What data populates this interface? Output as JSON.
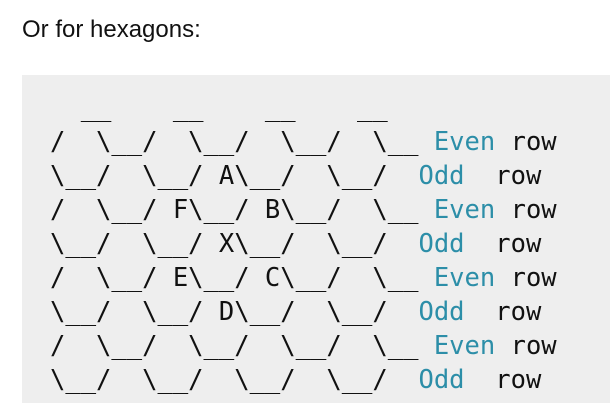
{
  "intro": {
    "text": "Or for hexagons:"
  },
  "code": {
    "lines": [
      {
        "art": "  __    __    __    __",
        "keyword": "",
        "rest": ""
      },
      {
        "art": "/  \\__/  \\__/  \\__/  \\__ ",
        "keyword": "Even",
        "rest": " row"
      },
      {
        "art": "\\__/  \\__/ A\\__/  \\__/  ",
        "keyword": "Odd",
        "rest": "  row"
      },
      {
        "art": "/  \\__/ F\\__/ B\\__/  \\__ ",
        "keyword": "Even",
        "rest": " row"
      },
      {
        "art": "\\__/  \\__/ X\\__/  \\__/  ",
        "keyword": "Odd",
        "rest": "  row"
      },
      {
        "art": "/  \\__/ E\\__/ C\\__/  \\__ ",
        "keyword": "Even",
        "rest": " row"
      },
      {
        "art": "\\__/  \\__/ D\\__/  \\__/  ",
        "keyword": "Odd",
        "rest": "  row"
      },
      {
        "art": "/  \\__/  \\__/  \\__/  \\__ ",
        "keyword": "Even",
        "rest": " row"
      },
      {
        "art": "\\__/  \\__/  \\__/  \\__/  ",
        "keyword": "Odd",
        "rest": "  row"
      }
    ]
  },
  "colors": {
    "keyword": "#2c8ea8",
    "code_background": "#eeeeee",
    "text": "#111111"
  }
}
